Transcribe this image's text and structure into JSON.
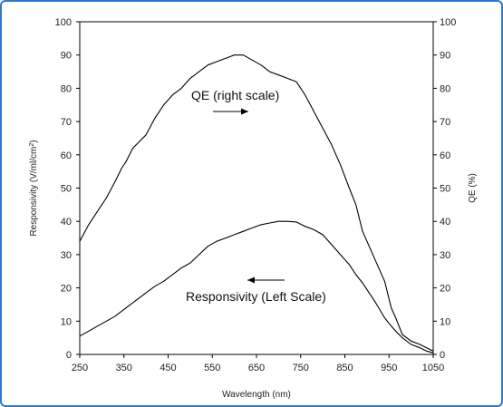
{
  "chart_data": {
    "type": "line",
    "title": "",
    "xlabel": "Wavelength  (nm)",
    "ylabel_left": "Responsivity  (V/ml/cm",
    "ylabel_left_sup": "2",
    "ylabel_left_close": ")",
    "ylabel_right": "QE (%)",
    "xlim": [
      250,
      1050
    ],
    "ylim": [
      0,
      100
    ],
    "x_ticks": [
      250,
      350,
      450,
      550,
      650,
      750,
      850,
      950,
      1050
    ],
    "y_ticks": [
      0,
      10,
      20,
      30,
      40,
      50,
      60,
      70,
      80,
      90,
      100
    ],
    "y_ticks_right": [
      0,
      10,
      20,
      30,
      40,
      50,
      60,
      70,
      80,
      90,
      100
    ],
    "grid": false,
    "annotations": [
      {
        "text": "QE (right scale)",
        "arrow": "right",
        "series": "qe"
      },
      {
        "text": "Responsivity (Left Scale)",
        "arrow": "left",
        "series": "responsivity"
      }
    ],
    "series": [
      {
        "id": "qe",
        "axis": "right",
        "color": "#000000",
        "x": [
          250,
          270,
          290,
          310,
          330,
          345,
          355,
          370,
          385,
          400,
          420,
          440,
          460,
          480,
          500,
          520,
          540,
          560,
          580,
          600,
          620,
          640,
          660,
          680,
          700,
          720,
          740,
          760,
          780,
          800,
          820,
          840,
          860,
          875,
          890,
          900,
          920,
          940,
          955,
          965,
          980,
          1000,
          1020,
          1035,
          1050
        ],
        "y": [
          34,
          39,
          43,
          47,
          52,
          56,
          58,
          62,
          64,
          66,
          71,
          75,
          78,
          80,
          83,
          85,
          87,
          88,
          89,
          90,
          90,
          88.5,
          87,
          85,
          84,
          83,
          82,
          78,
          73,
          68,
          63,
          57,
          50,
          45,
          37,
          34,
          28,
          22,
          14,
          11,
          6,
          4,
          3,
          2,
          1
        ]
      },
      {
        "id": "responsivity",
        "axis": "left",
        "color": "#000000",
        "x": [
          250,
          270,
          290,
          310,
          330,
          345,
          355,
          370,
          385,
          400,
          420,
          440,
          460,
          480,
          500,
          520,
          540,
          560,
          580,
          600,
          620,
          640,
          660,
          680,
          700,
          720,
          740,
          760,
          780,
          800,
          820,
          840,
          860,
          875,
          890,
          900,
          920,
          940,
          955,
          965,
          980,
          1000,
          1020,
          1035,
          1050
        ],
        "y": [
          5.5,
          7,
          8.5,
          10,
          11.5,
          13,
          14,
          15.5,
          17,
          18.5,
          20.5,
          22,
          24,
          26,
          27.5,
          30,
          32.5,
          34,
          35,
          36,
          37,
          38,
          39,
          39.5,
          40,
          40,
          39.8,
          38.5,
          37.5,
          36,
          33,
          30,
          27,
          24,
          21.5,
          19.5,
          15.5,
          11,
          8.5,
          7,
          5,
          3,
          2,
          1,
          0.5
        ]
      }
    ]
  }
}
